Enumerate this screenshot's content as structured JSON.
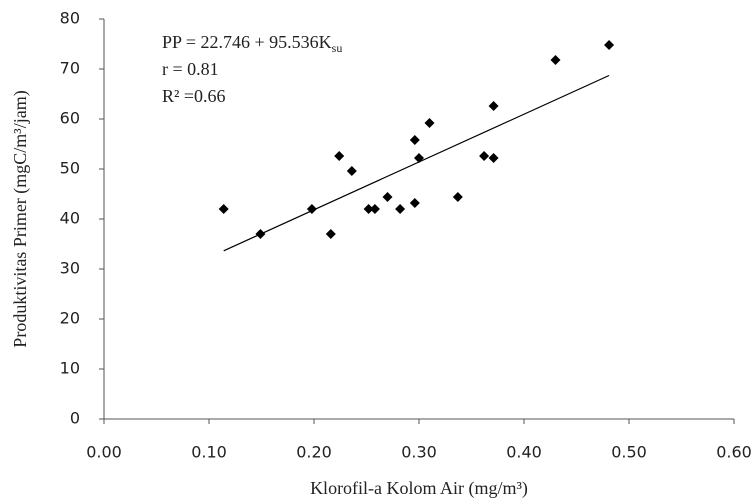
{
  "chart_data": {
    "type": "scatter",
    "x_label": "Klorofil-a Kolom Air (mg/m³)",
    "y_label": "Produktivitas Primer (mgC/m³/jam)",
    "annotations": [
      {
        "text": "PP = 22.746 + 95.536K",
        "sub": "su"
      },
      "r = 0.81",
      "R² =0.66"
    ],
    "trendline": {
      "intercept": 22.746,
      "slope": 95.536,
      "color": "#000000"
    },
    "color": "#000000",
    "x": [
      0.114,
      0.149,
      0.198,
      0.216,
      0.224,
      0.236,
      0.252,
      0.258,
      0.27,
      0.282,
      0.296,
      0.296,
      0.3,
      0.31,
      0.337,
      0.362,
      0.371,
      0.371,
      0.43,
      0.481
    ],
    "values": [
      42,
      37,
      42,
      37,
      52.6,
      49.6,
      42,
      42,
      44.4,
      42,
      55.8,
      43.2,
      52.2,
      59.2,
      44.4,
      52.6,
      52.2,
      62.6,
      71.8,
      74.8
    ],
    "xlim": [
      0,
      0.6
    ],
    "xticks": [
      {
        "value": 0,
        "label": "0.00"
      },
      {
        "value": 0.1,
        "label": "0.10"
      },
      {
        "value": 0.2,
        "label": "0.20"
      },
      {
        "value": 0.3,
        "label": "0.30"
      },
      {
        "value": 0.4,
        "label": "0.40"
      },
      {
        "value": 0.5,
        "label": "0.50"
      },
      {
        "value": 0.6,
        "label": "0.60"
      }
    ],
    "ylim": [
      0,
      80
    ],
    "yticks": [
      0,
      10,
      20,
      30,
      40,
      50,
      60,
      70,
      80
    ],
    "grid": false
  }
}
